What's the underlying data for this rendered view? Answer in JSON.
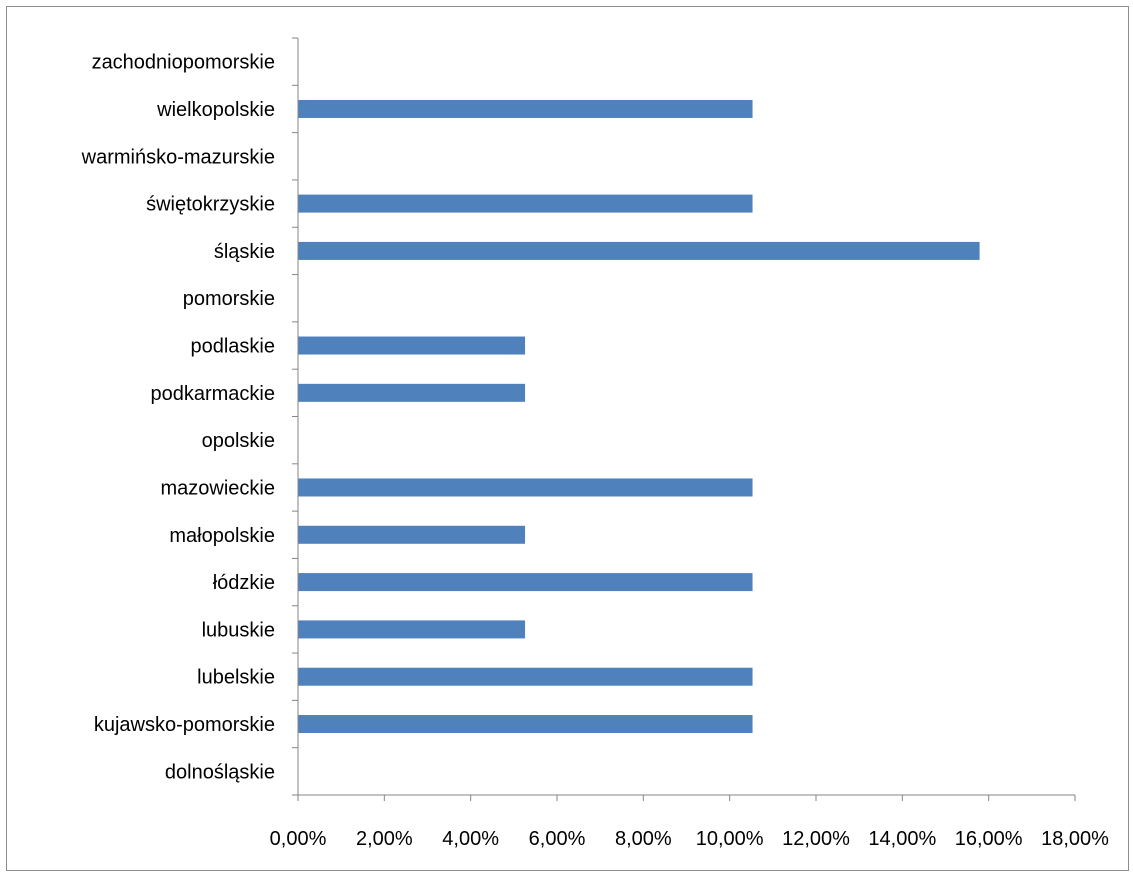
{
  "chart_data": {
    "type": "bar",
    "orientation": "horizontal",
    "categories": [
      "dolnośląskie",
      "kujawsko-pomorskie",
      "lubelskie",
      "lubuskie",
      "łódzkie",
      "małopolskie",
      "mazowieckie",
      "opolskie",
      "podkarmackie",
      "podlaskie",
      "pomorskie",
      "śląskie",
      "świętokrzyskie",
      "warmińsko-mazurskie",
      "wielkopolskie",
      "zachodniopomorskie"
    ],
    "values": [
      0,
      10.53,
      10.53,
      5.26,
      10.53,
      5.26,
      10.53,
      0,
      5.26,
      5.26,
      0,
      15.79,
      10.53,
      0,
      10.53,
      0
    ],
    "xlim": [
      0,
      18
    ],
    "x_ticks": [
      0,
      2,
      4,
      6,
      8,
      10,
      12,
      14,
      16,
      18
    ],
    "x_tick_labels": [
      "0,00%",
      "2,00%",
      "4,00%",
      "6,00%",
      "8,00%",
      "10,00%",
      "12,00%",
      "14,00%",
      "16,00%",
      "18,00%"
    ],
    "bar_color": "#4f81bd",
    "axis_color": "#868686",
    "grid": false,
    "legend": "none",
    "title": "",
    "xlabel": "",
    "ylabel": ""
  }
}
